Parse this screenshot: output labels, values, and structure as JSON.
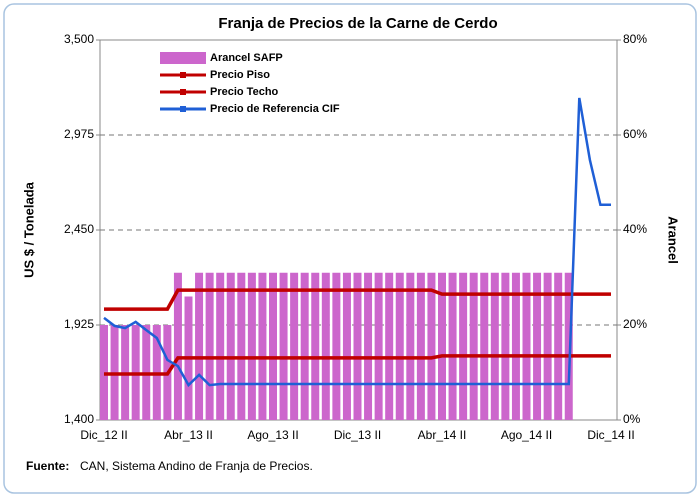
{
  "chart_data": {
    "type": "bar-line",
    "title": "Franja de Precios de la Carne de Cerdo",
    "y_label": "US $ / Tonelada",
    "y2_label": "Arancel",
    "source_label": "Fuente:",
    "source": "CAN, Sistema Andino de Franja de Precios.",
    "categories": [
      "Dic_12 II",
      null,
      null,
      null,
      null,
      null,
      null,
      null,
      "Abr_13 II",
      null,
      null,
      null,
      null,
      null,
      null,
      null,
      "Ago_13 II",
      null,
      null,
      null,
      null,
      null,
      null,
      null,
      "Dic_13 II",
      null,
      null,
      null,
      null,
      null,
      null,
      null,
      "Abr_14 II",
      null,
      null,
      null,
      null,
      null,
      null,
      null,
      "Ago_14 II",
      null,
      null,
      null,
      null,
      null,
      null,
      null,
      "Dic_14 II"
    ],
    "ylim": [
      1400,
      3500
    ],
    "yticks": [
      {
        "value": 1400,
        "label": "1,400"
      },
      {
        "value": 1925,
        "label": "1,925"
      },
      {
        "value": 2450,
        "label": "2,450"
      },
      {
        "value": 2975,
        "label": "2,975"
      },
      {
        "value": 3500,
        "label": "3,500"
      }
    ],
    "y2lim": [
      0,
      80
    ],
    "y2ticks": [
      {
        "value": 0,
        "label": "0%"
      },
      {
        "value": 20,
        "label": "20%"
      },
      {
        "value": 40,
        "label": "40%"
      },
      {
        "value": 60,
        "label": "60%"
      },
      {
        "value": 80,
        "label": "80%"
      }
    ],
    "grid": true,
    "legend": "top-left",
    "series": [
      {
        "name": "Arancel SAFP",
        "kind": "bar",
        "axis": "y2",
        "color": "#cc66cc",
        "values": [
          20,
          20,
          20,
          20,
          20,
          20,
          20,
          31,
          26,
          31,
          31,
          31,
          31,
          31,
          31,
          31,
          31,
          31,
          31,
          31,
          31,
          31,
          31,
          31,
          31,
          31,
          31,
          31,
          31,
          31,
          31,
          31,
          31,
          31,
          31,
          31,
          31,
          31,
          31,
          31,
          31,
          31,
          31,
          31,
          31,
          null,
          null,
          null,
          null
        ]
      },
      {
        "name": "Precio Piso",
        "kind": "line",
        "color": "#c00000",
        "values": [
          1654,
          1654,
          1654,
          1654,
          1654,
          1654,
          1654,
          1743,
          1743,
          1743,
          1743,
          1743,
          1743,
          1743,
          1743,
          1743,
          1743,
          1743,
          1743,
          1743,
          1743,
          1743,
          1743,
          1743,
          1743,
          1743,
          1743,
          1743,
          1743,
          1743,
          1743,
          1743,
          1754,
          1754,
          1754,
          1754,
          1754,
          1754,
          1754,
          1754,
          1754,
          1754,
          1754,
          1754,
          1754,
          1754,
          1754,
          1754,
          1754
        ]
      },
      {
        "name": "Precio Techo",
        "kind": "line",
        "color": "#c00000",
        "values": [
          2013,
          2013,
          2013,
          2013,
          2013,
          2013,
          2013,
          2118,
          2118,
          2118,
          2118,
          2118,
          2118,
          2118,
          2118,
          2118,
          2118,
          2118,
          2118,
          2118,
          2118,
          2118,
          2118,
          2118,
          2118,
          2118,
          2118,
          2118,
          2118,
          2118,
          2118,
          2118,
          2096,
          2096,
          2096,
          2096,
          2096,
          2096,
          2096,
          2096,
          2096,
          2096,
          2096,
          2096,
          2096,
          2096,
          2096,
          2096,
          2096
        ]
      },
      {
        "name": "Precio de Referencia CIF",
        "kind": "line",
        "color": "#1f5fd6",
        "values": [
          1964,
          1920,
          1908,
          1942,
          1897,
          1853,
          1732,
          1698,
          1593,
          1649,
          1593,
          1599,
          1599,
          1599,
          1599,
          1599,
          1599,
          1599,
          1599,
          1599,
          1599,
          1599,
          1599,
          1599,
          1599,
          1599,
          1599,
          1599,
          1599,
          1599,
          1599,
          1599,
          1599,
          1599,
          1599,
          1599,
          1599,
          1599,
          1599,
          1599,
          1599,
          1599,
          1599,
          1599,
          1599,
          3180,
          2837,
          2589,
          2589
        ]
      }
    ]
  }
}
